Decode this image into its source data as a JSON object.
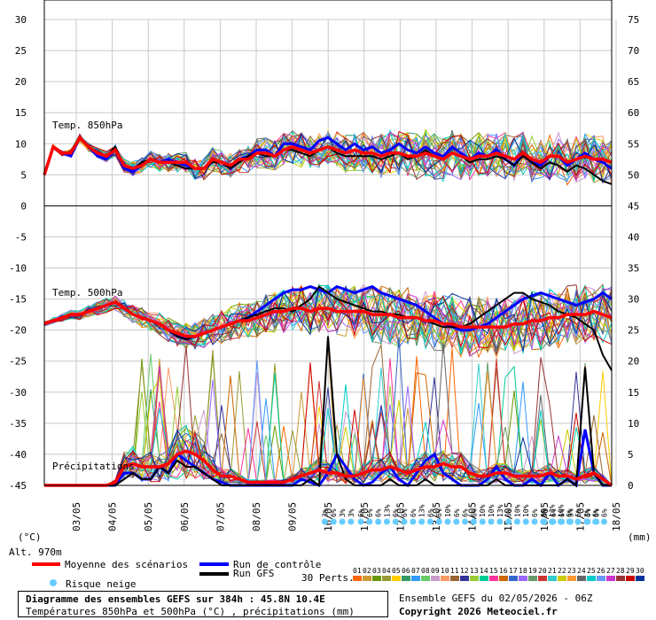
{
  "chart_data": {
    "type": "line",
    "title": "Diagramme des ensembles GEFS sur 384h : 45.8N 10.4E",
    "subtitle": "Températures 850hPa et 500hPa (°C) , précipitations (mm)",
    "run_info": "Ensemble GEFS du 02/05/2026 - 06Z",
    "copyright": "Copyright 2026 Meteociel.fr",
    "left_axis_unit": "(°C)",
    "right_axis_unit": "(mm)",
    "altitude": "Alt. 970m",
    "left_ticks": [
      30,
      25,
      20,
      15,
      10,
      5,
      0,
      -5,
      -10,
      -15,
      -20,
      -25,
      -30,
      -35,
      -40,
      -45
    ],
    "right_ticks": [
      75,
      70,
      65,
      60,
      55,
      50,
      45,
      40,
      35,
      30,
      25,
      20,
      15,
      10,
      5,
      0
    ],
    "x_dates": [
      "03/05",
      "04/05",
      "05/05",
      "06/05",
      "07/05",
      "08/05",
      "09/05",
      "10/05",
      "11/05",
      "12/05",
      "13/05",
      "14/05",
      "15/05",
      "16/05",
      "17/05",
      "18/05"
    ],
    "panel_labels": {
      "t850": "Temp. 850hPa",
      "t500": "Temp. 500hPa",
      "precip": "Précipitations"
    },
    "legend": {
      "mean": "Moyenne des scénarios",
      "control": "Run de contrôle",
      "gfs": "Run GFS",
      "snow": "Risque neige",
      "perts": "30 Perts."
    },
    "member_labels": [
      "01",
      "02",
      "03",
      "04",
      "05",
      "06",
      "07",
      "08",
      "09",
      "10",
      "11",
      "12",
      "13",
      "14",
      "15",
      "16",
      "17",
      "18",
      "19",
      "20",
      "21",
      "22",
      "23",
      "24",
      "25",
      "26",
      "27",
      "28",
      "29",
      "30"
    ],
    "member_colors": [
      "#ff6600",
      "#cc9933",
      "#669900",
      "#999933",
      "#ffcc00",
      "#339966",
      "#3399ff",
      "#66cc66",
      "#cc99cc",
      "#ff9966",
      "#996633",
      "#333399",
      "#99cc33",
      "#00cc99",
      "#ff3399",
      "#cc6600",
      "#3366cc",
      "#9966ff",
      "#669966",
      "#cc3333",
      "#33cccc",
      "#cccc00",
      "#ff9933",
      "#666666",
      "#00cccc",
      "#6699ff",
      "#cc33cc",
      "#993333",
      "#cc0000",
      "#003399"
    ],
    "series": [
      {
        "name": "Moyenne des scénarios",
        "t850": [
          5,
          9.5,
          8.5,
          8.5,
          11,
          9.5,
          8.5,
          8,
          9,
          6.5,
          6,
          6.5,
          7.5,
          7,
          7,
          7,
          7,
          6,
          6,
          7.5,
          7,
          6.5,
          7.5,
          7.5,
          8.5,
          8.5,
          8,
          9,
          9.5,
          9,
          8.5,
          9,
          9.5,
          9,
          8.5,
          9,
          8.5,
          8.5,
          8,
          8.5,
          8.5,
          8,
          8,
          8.5,
          8,
          7.5,
          8.5,
          8,
          7.5,
          8,
          8,
          8.5,
          8,
          7.5,
          8.5,
          7.5,
          7,
          8,
          8,
          7,
          7.5,
          8,
          7.5,
          7.5,
          7
        ],
        "t500": [
          -19,
          -18.5,
          -18,
          -17.5,
          -17.5,
          -17,
          -16.5,
          -16,
          -15.5,
          -16.5,
          -17.5,
          -18,
          -18.5,
          -19,
          -20,
          -20.5,
          -21,
          -21,
          -20.5,
          -20,
          -19.5,
          -19,
          -18.5,
          -18.5,
          -18,
          -17.5,
          -17,
          -17,
          -16.5,
          -16.5,
          -17,
          -16.5,
          -16.5,
          -17,
          -17,
          -17,
          -17,
          -17.5,
          -17.5,
          -17.5,
          -18,
          -18,
          -18,
          -18.5,
          -18.5,
          -19,
          -19,
          -19.5,
          -19.5,
          -19.5,
          -19.5,
          -19.5,
          -19.5,
          -19,
          -19,
          -18.5,
          -18.5,
          -18,
          -18,
          -17.5,
          -17.5,
          -17.5,
          -17,
          -17.5,
          -18
        ],
        "precip": [
          0,
          0,
          0,
          0,
          0,
          0,
          0,
          0,
          0.5,
          3,
          3.5,
          3,
          3,
          3,
          3.5,
          5,
          5.5,
          5,
          4,
          2.5,
          1.5,
          1.5,
          1,
          0.5,
          0.5,
          0.5,
          0.5,
          0.5,
          1,
          1.5,
          2,
          2.5,
          2,
          2,
          1.5,
          1.5,
          2,
          2.5,
          2.5,
          3,
          2.5,
          2,
          2.5,
          3,
          3,
          3.5,
          3,
          3,
          2,
          1.5,
          1.5,
          2,
          2,
          1.5,
          1.5,
          1.5,
          1.5,
          2,
          1.5,
          1.5,
          1,
          1.5,
          2,
          1,
          0
        ]
      },
      {
        "name": "Run de contrôle",
        "t850": [
          5,
          9.5,
          8.5,
          8,
          11,
          9.5,
          8,
          7.5,
          9,
          6,
          5.5,
          6.5,
          7.5,
          7,
          7.5,
          7,
          6.5,
          6,
          6,
          7.5,
          7,
          6,
          7.5,
          8,
          9,
          9,
          8,
          10,
          10,
          9.5,
          9,
          10.5,
          11,
          10,
          9,
          10,
          9,
          9.5,
          8.5,
          9,
          10,
          9,
          8.5,
          9.5,
          8.5,
          8,
          9.5,
          8.5,
          7.5,
          8.5,
          8,
          9,
          7.5,
          6.5,
          8.5,
          7,
          6.5,
          8,
          8,
          6.5,
          7.5,
          8.5,
          7.5,
          7,
          6
        ],
        "t500": [
          -19,
          -18.5,
          -18,
          -17.5,
          -17.5,
          -17,
          -16.5,
          -16,
          -15.5,
          -16.5,
          -17.5,
          -18,
          -18.5,
          -19,
          -20,
          -21,
          -21.5,
          -21,
          -20.5,
          -20,
          -19.5,
          -19,
          -18.5,
          -18,
          -17,
          -16,
          -15,
          -14,
          -13.5,
          -13.5,
          -13,
          -13.5,
          -14,
          -13,
          -13.5,
          -14,
          -13.5,
          -13,
          -14,
          -14.5,
          -15,
          -15.5,
          -16,
          -17,
          -18,
          -19,
          -19.5,
          -20,
          -20,
          -19.5,
          -19,
          -18,
          -17,
          -16,
          -15,
          -14.5,
          -14,
          -14.5,
          -15,
          -15.5,
          -16,
          -15.5,
          -15,
          -14,
          -15
        ],
        "precip": [
          0,
          0,
          0,
          0,
          0,
          0,
          0,
          0,
          0,
          2,
          2,
          1,
          1,
          3,
          2,
          5,
          4,
          3,
          2,
          1,
          0.5,
          0,
          0,
          0,
          0,
          0,
          0,
          0,
          0,
          1,
          0.5,
          0,
          2,
          5,
          3,
          1,
          0,
          0.5,
          2,
          3,
          1,
          0,
          2,
          4,
          5,
          2,
          1,
          0,
          0,
          0,
          1,
          3,
          1,
          0,
          0,
          1,
          0,
          2,
          0,
          1,
          0,
          9,
          2,
          0,
          0
        ]
      },
      {
        "name": "Run GFS",
        "t850": [
          5,
          9.5,
          8.5,
          8.5,
          11,
          9.5,
          8.5,
          8,
          9.5,
          6.5,
          6,
          7,
          7.5,
          7,
          7,
          6.5,
          6,
          6,
          6,
          7,
          7,
          6,
          7,
          8,
          8.5,
          8,
          8,
          9,
          9,
          8.5,
          8,
          9,
          9.5,
          8.5,
          8,
          8,
          8,
          8,
          7.5,
          8,
          8.5,
          7.5,
          8,
          9,
          8,
          7.5,
          8.5,
          8,
          7,
          7.5,
          7.5,
          8,
          7.5,
          6.5,
          8,
          7,
          6,
          7,
          6.5,
          5.5,
          6.5,
          6,
          5,
          4,
          3.5
        ],
        "t500": [
          -19,
          -18.5,
          -18,
          -17.5,
          -17.5,
          -17,
          -16.5,
          -16,
          -15.5,
          -16.5,
          -17.5,
          -18,
          -18.5,
          -19,
          -20,
          -21,
          -21.5,
          -21,
          -20.5,
          -20,
          -19.5,
          -19,
          -18.5,
          -18,
          -17.5,
          -17,
          -16.5,
          -16.5,
          -17,
          -16,
          -15,
          -13,
          -14,
          -15,
          -15.5,
          -16,
          -16.5,
          -17,
          -17,
          -17.5,
          -17.5,
          -18,
          -18,
          -18.5,
          -19,
          -19.5,
          -19.5,
          -19.5,
          -19,
          -18,
          -17,
          -16,
          -15,
          -14,
          -14,
          -15,
          -15.5,
          -16,
          -17,
          -17.5,
          -18,
          -19,
          -20,
          -24,
          -26.5
        ],
        "precip": [
          0,
          0,
          0,
          0,
          0,
          0,
          0,
          0,
          0,
          1,
          2,
          1,
          1,
          3,
          2,
          4,
          3,
          3,
          2,
          1,
          0,
          0,
          0,
          0,
          0,
          0,
          0,
          0,
          0,
          0,
          1,
          0,
          24,
          5,
          1,
          0,
          0,
          0,
          0,
          1,
          0,
          0,
          0,
          1,
          0,
          0,
          0,
          0,
          0,
          0,
          0,
          1,
          0,
          0,
          0,
          0,
          0,
          0,
          0,
          1,
          0,
          19,
          2,
          0,
          0
        ]
      }
    ],
    "snow_risk": [
      {
        "date_index": 7.4,
        "labels": [
          "3%",
          "6%",
          "3%",
          "3%"
        ]
      },
      {
        "date_index": 8.4,
        "labels": [
          "6%",
          "6%",
          "6%",
          "13%",
          "6%",
          "6%",
          "6%",
          "13%",
          "6%",
          "6%",
          "10%",
          "6%",
          "6%",
          "6%",
          "10%",
          "10%",
          "13%",
          "6%",
          "10%",
          "10%",
          "6%",
          "6%",
          "13%",
          "10%",
          "6%",
          "6%",
          "3%",
          "6%",
          "6%",
          "3%"
        ]
      },
      {
        "date_index": 13.5,
        "labels": [
          "3%",
          "6%",
          "6%",
          "3%"
        ]
      },
      {
        "date_index": 14.7,
        "labels": [
          "6%",
          "6%"
        ]
      }
    ],
    "ylim_left": [
      -45,
      30
    ],
    "ylim_right": [
      0,
      75
    ],
    "grid": true
  }
}
